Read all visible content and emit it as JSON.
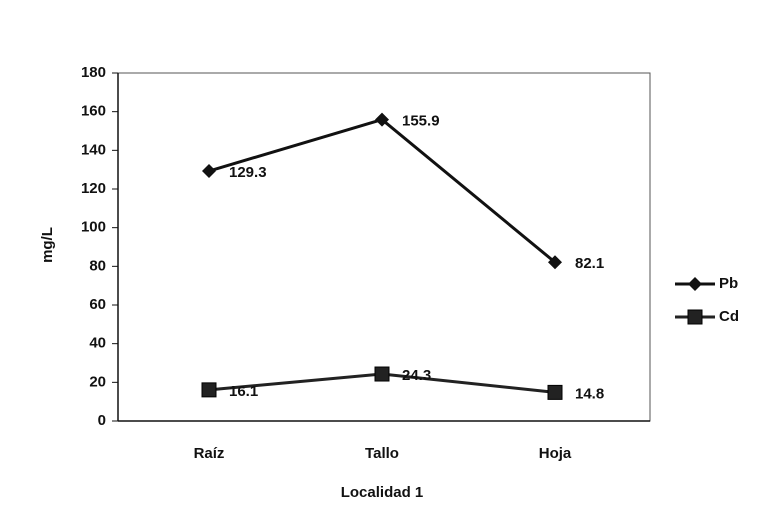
{
  "chart_data": {
    "type": "line",
    "x_label": "Localidad 1",
    "y_label": "mg/L",
    "categories": [
      "Raíz",
      "Tallo",
      "Hoja"
    ],
    "series": [
      {
        "name": "Pb",
        "color": "#111111",
        "marker": "diamond",
        "values": [
          129.3,
          155.9,
          82.1
        ]
      },
      {
        "name": "Cd",
        "color": "#222222",
        "marker": "square",
        "values": [
          16.1,
          24.3,
          14.8
        ]
      }
    ],
    "ylim": [
      0,
      180
    ],
    "yticks": [
      0,
      20,
      40,
      60,
      80,
      100,
      120,
      140,
      160,
      180
    ],
    "grid": false,
    "legend": "right"
  }
}
